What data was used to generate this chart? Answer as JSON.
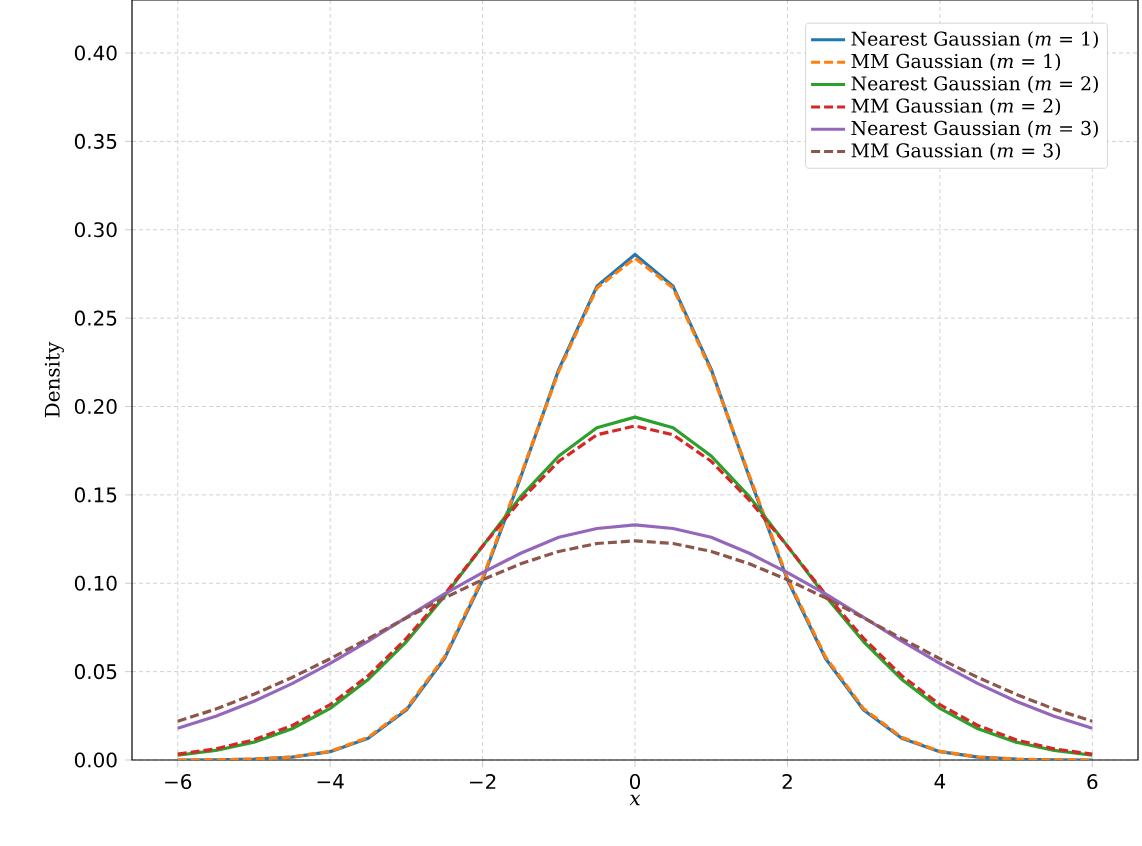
{
  "chart_data": {
    "type": "line",
    "xlabel": "*x*",
    "ylabel": "Density",
    "x": [
      -6,
      -5.5,
      -5,
      -4.5,
      -4,
      -3.5,
      -3,
      -2.5,
      -2,
      -1.5,
      -1,
      -0.5,
      0,
      0.5,
      1,
      1.5,
      2,
      2.5,
      3,
      3.5,
      4,
      4.5,
      5,
      5.5,
      6
    ],
    "series": [
      {
        "name": "Nearest Gaussian (*m* = 1)",
        "color": "#1f77b4",
        "line_style": "solid",
        "values": [
          0.0,
          0.0001,
          0.0005,
          0.0016,
          0.0047,
          0.0123,
          0.0283,
          0.0574,
          0.102,
          0.16,
          0.221,
          0.268,
          0.286,
          0.268,
          0.221,
          0.16,
          0.102,
          0.0574,
          0.0283,
          0.0123,
          0.0047,
          0.0016,
          0.0005,
          0.0001,
          0.0
        ]
      },
      {
        "name": "MM Gaussian (*m* = 1)",
        "color": "#ff7f0e",
        "line_style": "dashed",
        "values": [
          0.0,
          0.0001,
          0.0005,
          0.0017,
          0.0049,
          0.0128,
          0.029,
          0.0583,
          0.103,
          0.161,
          0.22,
          0.267,
          0.284,
          0.267,
          0.22,
          0.161,
          0.103,
          0.0583,
          0.029,
          0.0128,
          0.0049,
          0.0017,
          0.0005,
          0.0001,
          0.0
        ]
      },
      {
        "name": "Nearest Gaussian (*m* = 2)",
        "color": "#2ca02c",
        "line_style": "solid",
        "values": [
          0.0027,
          0.0054,
          0.0101,
          0.0177,
          0.0292,
          0.0456,
          0.0669,
          0.0926,
          0.121,
          0.149,
          0.172,
          0.188,
          0.194,
          0.188,
          0.172,
          0.149,
          0.121,
          0.0926,
          0.0669,
          0.0456,
          0.0292,
          0.0177,
          0.0101,
          0.0054,
          0.0027
        ]
      },
      {
        "name": "MM Gaussian (*m* = 2)",
        "color": "#d62728",
        "line_style": "dashed",
        "values": [
          0.0033,
          0.0063,
          0.0114,
          0.0195,
          0.0313,
          0.0477,
          0.0688,
          0.0937,
          0.121,
          0.147,
          0.169,
          0.184,
          0.189,
          0.184,
          0.169,
          0.147,
          0.121,
          0.0937,
          0.0688,
          0.0477,
          0.0313,
          0.0195,
          0.0114,
          0.0063,
          0.0033
        ]
      },
      {
        "name": "Nearest Gaussian (*m* = 3)",
        "color": "#9467bd",
        "line_style": "solid",
        "values": [
          0.018,
          0.0248,
          0.0332,
          0.0432,
          0.0547,
          0.0673,
          0.0807,
          0.094,
          0.106,
          0.117,
          0.126,
          0.131,
          0.133,
          0.131,
          0.126,
          0.117,
          0.106,
          0.094,
          0.0807,
          0.0673,
          0.0547,
          0.0432,
          0.0332,
          0.0248,
          0.018
        ]
      },
      {
        "name": "MM Gaussian (*m* = 3)",
        "color": "#8c564b",
        "line_style": "dashed",
        "values": [
          0.0219,
          0.0288,
          0.0372,
          0.0467,
          0.0573,
          0.0687,
          0.0804,
          0.0917,
          0.102,
          0.111,
          0.118,
          0.1225,
          0.124,
          0.1225,
          0.118,
          0.111,
          0.102,
          0.0917,
          0.0804,
          0.0687,
          0.0573,
          0.0467,
          0.0372,
          0.0288,
          0.0219
        ]
      }
    ],
    "xlim": [
      -6.6,
      6.6
    ],
    "ylim": [
      0,
      0.43
    ],
    "xticks": [
      {
        "value": -6,
        "label": "−6"
      },
      {
        "value": -4,
        "label": "−4"
      },
      {
        "value": -2,
        "label": "−2"
      },
      0,
      2,
      4,
      6
    ],
    "yticks": [
      {
        "value": 0,
        "label": "0.00"
      },
      {
        "value": 0.05,
        "label": "0.05"
      },
      {
        "value": 0.1,
        "label": "0.10"
      },
      {
        "value": 0.15,
        "label": "0.15"
      },
      {
        "value": 0.2,
        "label": "0.20"
      },
      {
        "value": 0.25,
        "label": "0.25"
      },
      {
        "value": 0.3,
        "label": "0.30"
      },
      {
        "value": 0.35,
        "label": "0.35"
      },
      {
        "value": 0.4,
        "label": "0.40"
      }
    ],
    "grid": true,
    "legend": "top right",
    "marker": "none"
  }
}
